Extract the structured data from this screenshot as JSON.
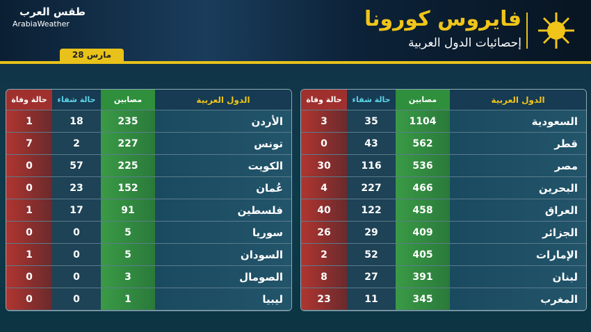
{
  "header": {
    "title": "فايروس كورونا",
    "subtitle": "إحصائيات الدول العربية",
    "date": "28 مارس",
    "logo_ar": "طقس العرب",
    "logo_en": "ArabiaWeather"
  },
  "tables": [
    {
      "columns": [
        "الدول العربية",
        "مصابين",
        "حالة شفاء",
        "حالة وفاة"
      ],
      "rows": [
        [
          "السعودية",
          "1104",
          "35",
          "3"
        ],
        [
          "قطر",
          "562",
          "43",
          "0"
        ],
        [
          "مصر",
          "536",
          "116",
          "30"
        ],
        [
          "البحرين",
          "466",
          "227",
          "4"
        ],
        [
          "العراق",
          "458",
          "122",
          "40"
        ],
        [
          "الجزائر",
          "409",
          "29",
          "26"
        ],
        [
          "الإمارات",
          "405",
          "52",
          "2"
        ],
        [
          "لبنان",
          "391",
          "27",
          "8"
        ],
        [
          "المغرب",
          "345",
          "11",
          "23"
        ]
      ]
    },
    {
      "columns": [
        "الدول العربية",
        "مصابين",
        "حالة شفاء",
        "حالة وفاة"
      ],
      "rows": [
        [
          "الأردن",
          "235",
          "18",
          "1"
        ],
        [
          "تونس",
          "227",
          "2",
          "7"
        ],
        [
          "الكويت",
          "225",
          "57",
          "0"
        ],
        [
          "عُمان",
          "152",
          "23",
          "0"
        ],
        [
          "فلسطين",
          "91",
          "17",
          "1"
        ],
        [
          "سوريا",
          "5",
          "0",
          "0"
        ],
        [
          "السودان",
          "5",
          "0",
          "1"
        ],
        [
          "الصومال",
          "3",
          "0",
          "0"
        ],
        [
          "ليبيا",
          "1",
          "0",
          "0"
        ]
      ]
    }
  ]
}
